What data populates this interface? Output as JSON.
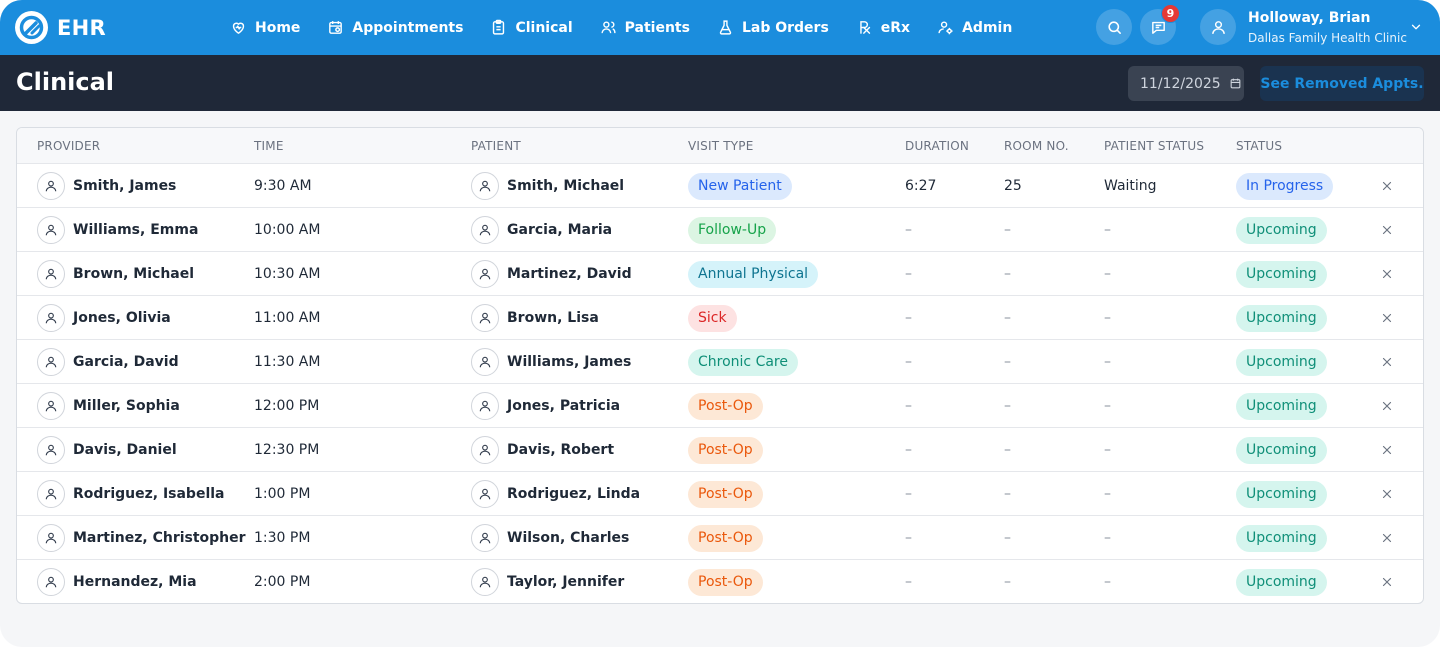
{
  "app": {
    "logo_text": "EHR"
  },
  "nav": [
    {
      "label": "Home",
      "icon": "heart-icon"
    },
    {
      "label": "Appointments",
      "icon": "calendar-icon"
    },
    {
      "label": "Clinical",
      "icon": "clipboard-icon"
    },
    {
      "label": "Patients",
      "icon": "users-icon"
    },
    {
      "label": "Lab Orders",
      "icon": "flask-icon"
    },
    {
      "label": "eRx",
      "icon": "rx-icon"
    },
    {
      "label": "Admin",
      "icon": "user-cog-icon"
    }
  ],
  "notifications": {
    "count": "9"
  },
  "user": {
    "name": "Holloway, Brian",
    "clinic": "Dallas Family Health Clinic"
  },
  "page": {
    "title": "Clinical",
    "date": "11/12/2025",
    "removed_button": "See Removed Appts."
  },
  "columns": [
    "PROVIDER",
    "TIME",
    "PATIENT",
    "VISIT TYPE",
    "DURATION",
    "ROOM NO.",
    "PATIENT STATUS",
    "STATUS"
  ],
  "rows": [
    {
      "provider": "Smith, James",
      "time": "9:30 AM",
      "patient": "Smith, Michael",
      "visit_type": "New Patient",
      "visit_style": "blue",
      "duration": "6:27",
      "room": "25",
      "patient_status": "Waiting",
      "status": "In Progress",
      "status_style": "blue"
    },
    {
      "provider": "Williams, Emma",
      "time": "10:00 AM",
      "patient": "Garcia, Maria",
      "visit_type": "Follow-Up",
      "visit_style": "green",
      "duration": "–",
      "room": "–",
      "patient_status": "–",
      "status": "Upcoming",
      "status_style": "teal"
    },
    {
      "provider": "Brown, Michael",
      "time": "10:30 AM",
      "patient": "Martinez, David",
      "visit_type": "Annual Physical",
      "visit_style": "cyan",
      "duration": "–",
      "room": "–",
      "patient_status": "–",
      "status": "Upcoming",
      "status_style": "teal"
    },
    {
      "provider": "Jones, Olivia",
      "time": "11:00 AM",
      "patient": "Brown, Lisa",
      "visit_type": "Sick",
      "visit_style": "red",
      "duration": "–",
      "room": "–",
      "patient_status": "–",
      "status": "Upcoming",
      "status_style": "teal"
    },
    {
      "provider": "Garcia, David",
      "time": "11:30 AM",
      "patient": "Williams, James",
      "visit_type": "Chronic Care",
      "visit_style": "teal",
      "duration": "–",
      "room": "–",
      "patient_status": "–",
      "status": "Upcoming",
      "status_style": "teal"
    },
    {
      "provider": "Miller, Sophia",
      "time": "12:00 PM",
      "patient": "Jones, Patricia",
      "visit_type": "Post-Op",
      "visit_style": "orange",
      "duration": "–",
      "room": "–",
      "patient_status": "–",
      "status": "Upcoming",
      "status_style": "teal"
    },
    {
      "provider": "Davis, Daniel",
      "time": "12:30 PM",
      "patient": "Davis, Robert",
      "visit_type": "Post-Op",
      "visit_style": "orange",
      "duration": "–",
      "room": "–",
      "patient_status": "–",
      "status": "Upcoming",
      "status_style": "teal"
    },
    {
      "provider": "Rodriguez, Isabella",
      "time": "1:00 PM",
      "patient": "Rodriguez, Linda",
      "visit_type": "Post-Op",
      "visit_style": "orange",
      "duration": "–",
      "room": "–",
      "patient_status": "–",
      "status": "Upcoming",
      "status_style": "teal"
    },
    {
      "provider": "Martinez, Christopher",
      "time": "1:30 PM",
      "patient": "Wilson, Charles",
      "visit_type": "Post-Op",
      "visit_style": "orange",
      "duration": "–",
      "room": "–",
      "patient_status": "–",
      "status": "Upcoming",
      "status_style": "teal"
    },
    {
      "provider": "Hernandez, Mia",
      "time": "2:00 PM",
      "patient": "Taylor, Jennifer",
      "visit_type": "Post-Op",
      "visit_style": "orange",
      "duration": "–",
      "room": "–",
      "patient_status": "–",
      "status": "Upcoming",
      "status_style": "teal"
    }
  ],
  "pill_colors": {
    "blue": {
      "bg": "#dbe9fd",
      "fg": "#2563eb"
    },
    "green": {
      "bg": "#dcf5e3",
      "fg": "#16a34a"
    },
    "cyan": {
      "bg": "#d5f3fa",
      "fg": "#0e7490"
    },
    "red": {
      "bg": "#fde2e2",
      "fg": "#dc2626"
    },
    "teal": {
      "bg": "#d5f5ee",
      "fg": "#0f8f78"
    },
    "orange": {
      "bg": "#fde8d6",
      "fg": "#ea580c"
    }
  }
}
